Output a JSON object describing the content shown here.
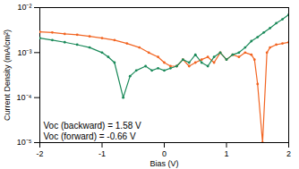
{
  "chart_data": {
    "type": "line",
    "x_label": "Bias (V)",
    "y_label": "Current Density (mA/cm²)",
    "log": "y",
    "grid": false,
    "marker": "circle",
    "xlim": [
      -2,
      2
    ],
    "xticks": [
      -2,
      -1,
      0,
      1,
      2
    ],
    "ylim": [
      1e-05,
      0.01
    ],
    "yticks": [
      {
        "value": 1e-05,
        "label": "10⁻⁵"
      },
      {
        "value": 0.0001,
        "label": "10⁻⁴"
      },
      {
        "value": 0.001,
        "label": "10⁻³"
      },
      {
        "value": 0.01,
        "label": "10⁻²"
      }
    ],
    "annotations": [
      "Voc (backward) = 1.58 V",
      "Voc (forward) = -0.66 V"
    ],
    "series": [
      {
        "color": "#f26522",
        "x": [
          -2,
          -1.8,
          -1.6,
          -1.4,
          -1.2,
          -1,
          -0.8,
          -0.6,
          -0.4,
          -0.25,
          -0.1,
          0,
          0.1,
          0.2,
          0.3,
          0.4,
          0.5,
          0.6,
          0.7,
          0.8,
          0.9,
          1,
          1.1,
          1.2,
          1.3,
          1.4,
          1.45,
          1.5,
          1.58,
          1.65,
          1.7,
          1.8,
          1.9,
          2
        ],
        "values": [
          0.0029,
          0.0028,
          0.0026,
          0.0025,
          0.0023,
          0.0021,
          0.0019,
          0.0016,
          0.0013,
          0.001,
          0.0008,
          0.0006,
          0.0005,
          0.0005,
          0.0007,
          0.0005,
          0.0006,
          0.0007,
          0.0008,
          0.0006,
          0.001,
          0.0007,
          0.0009,
          0.0008,
          0.001,
          0.0009,
          0.0007,
          0.0002,
          1e-05,
          0.001,
          0.0013,
          0.0015,
          0.0016,
          0.0017
        ]
      },
      {
        "color": "#1b8a5a",
        "x": [
          -2,
          -1.8,
          -1.6,
          -1.4,
          -1.2,
          -1,
          -0.9,
          -0.8,
          -0.66,
          -0.55,
          -0.45,
          -0.3,
          -0.2,
          -0.1,
          0,
          0.1,
          0.2,
          0.3,
          0.4,
          0.5,
          0.6,
          0.7,
          0.8,
          0.9,
          1,
          1.1,
          1.2,
          1.3,
          1.4,
          1.5,
          1.6,
          1.7,
          1.8,
          1.9,
          2
        ],
        "values": [
          0.0021,
          0.0019,
          0.0017,
          0.0015,
          0.0013,
          0.001,
          0.0008,
          0.0006,
          0.0001,
          0.0003,
          0.0004,
          0.0005,
          0.0004,
          0.00045,
          0.0004,
          0.00045,
          0.0005,
          0.0007,
          0.0006,
          0.0009,
          0.0006,
          0.0005,
          0.0008,
          0.001,
          0.0007,
          0.0009,
          0.001,
          0.0013,
          0.0018,
          0.0022,
          0.0028,
          0.0035,
          0.0045,
          0.0055,
          0.007
        ]
      }
    ]
  }
}
